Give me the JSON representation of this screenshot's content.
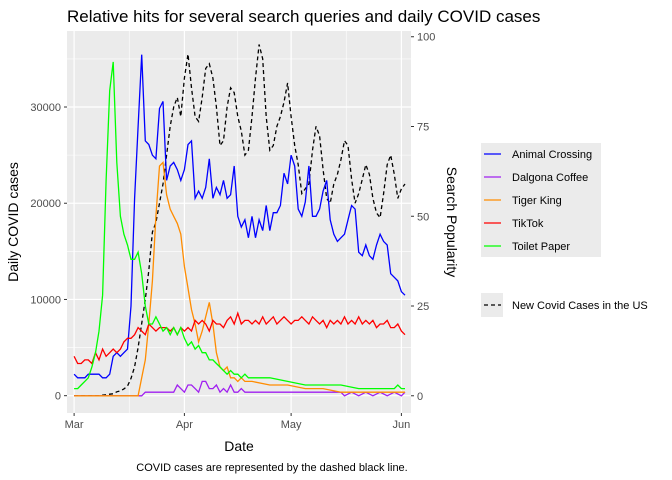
{
  "chart_data": {
    "type": "line",
    "title": "Relative hits for several search queries and daily COVID cases",
    "xlabel": "Date",
    "ylabel": "Daily COVID cases",
    "y2label": "Search Popularity",
    "caption": "COVID cases are represented by the dashed black line.",
    "x_ticks": [
      "Mar",
      "Apr",
      "May",
      "Jun"
    ],
    "x_tick_values": [
      0,
      31,
      61,
      92
    ],
    "y_ticks": [
      "0",
      "10000",
      "20000",
      "30000"
    ],
    "y_tick_values": [
      0,
      10000,
      20000,
      30000
    ],
    "y2_ticks": [
      "0",
      "25",
      "50",
      "75",
      "100"
    ],
    "y2_tick_values": [
      0,
      25,
      50,
      75,
      100
    ],
    "xlim": [
      -2,
      94.7
    ],
    "ylim": [
      -1800,
      37900
    ],
    "y2lim": [
      -4.8,
      101.6
    ],
    "grid": true,
    "legend_position": "right",
    "legend": {
      "search_entries": [
        "Animal Crossing",
        "Dalgona Coffee",
        "Tiger King",
        "TikTok",
        "Toilet Paper"
      ],
      "covid_entry": "New Covid Cases in the US"
    },
    "colors": {
      "panel": "#ebebeb",
      "grid": "#ffffff",
      "animal_crossing": "#0000ff",
      "dalgona_coffee": "#a020f0",
      "tiger_king": "#ff8c00",
      "tiktok": "#ff0000",
      "toilet_paper": "#00ff00",
      "covid": "#000000"
    },
    "search_series": [
      {
        "name": "Animal Crossing",
        "color": "#0000ff",
        "x": [
          0,
          1,
          2,
          3,
          4,
          5,
          6,
          7,
          8,
          9,
          10,
          11,
          12,
          13,
          14,
          15,
          16,
          17,
          18,
          19,
          20,
          21,
          22,
          23,
          24,
          25,
          26,
          27,
          28,
          29,
          30,
          31,
          32,
          33,
          34,
          35,
          36,
          37,
          38,
          39,
          40,
          41,
          42,
          43,
          44,
          45,
          46,
          47,
          48,
          49,
          50,
          51,
          52,
          53,
          54,
          55,
          56,
          57,
          58,
          59,
          60,
          61,
          62,
          63,
          64,
          65,
          66,
          67,
          68,
          69,
          70,
          71,
          72,
          73,
          74,
          75,
          76,
          77,
          78,
          79,
          80,
          81,
          82,
          83,
          84,
          85,
          86,
          87,
          88,
          89,
          90,
          91,
          92,
          93
        ],
        "y": [
          6,
          5,
          5,
          5,
          6,
          6,
          6,
          6,
          5,
          5,
          6,
          11,
          12,
          11,
          12,
          13,
          25,
          55,
          75,
          95,
          71,
          70,
          67,
          66,
          80,
          82,
          60,
          64,
          65,
          63,
          60,
          63,
          70,
          71,
          55,
          57,
          55,
          58,
          66,
          55,
          58,
          56,
          60,
          55,
          56,
          64,
          50,
          47,
          49,
          44,
          50,
          44,
          49,
          46,
          53,
          46,
          51,
          51,
          53,
          62,
          59,
          67,
          64,
          52,
          50,
          54,
          64,
          50,
          50,
          52,
          57,
          60,
          49,
          45,
          43,
          44,
          45,
          49,
          53,
          52,
          40,
          39,
          42,
          39,
          38,
          42,
          45,
          43,
          42,
          34,
          33,
          32,
          29,
          28
        ]
      },
      {
        "name": "Dalgona Coffee",
        "color": "#a020f0",
        "x": [
          0,
          5,
          10,
          15,
          19,
          20,
          24,
          28,
          29,
          30,
          31,
          32,
          33,
          34,
          35,
          36,
          37,
          38,
          39,
          40,
          41,
          42,
          43,
          44,
          45,
          46,
          47,
          48,
          49,
          50,
          55,
          60,
          65,
          70,
          75,
          76,
          78,
          80,
          82,
          84,
          86,
          88,
          90,
          92,
          93
        ],
        "y": [
          0,
          0,
          0,
          0,
          0,
          1,
          1,
          1,
          3,
          2,
          1,
          3,
          3,
          2,
          1,
          4,
          4,
          2,
          2,
          3,
          1,
          2,
          1,
          3,
          1,
          1,
          2,
          1,
          1,
          1,
          1,
          1,
          1,
          1,
          1,
          0,
          1,
          0,
          1,
          0,
          1,
          0,
          1,
          0,
          1
        ]
      },
      {
        "name": "Tiger King",
        "color": "#ff8c00",
        "x": [
          0,
          5,
          10,
          15,
          18,
          19,
          20,
          21,
          22,
          23,
          24,
          25,
          26,
          27,
          28,
          29,
          30,
          31,
          32,
          33,
          34,
          35,
          36,
          37,
          38,
          39,
          40,
          41,
          42,
          43,
          44,
          45,
          46,
          47,
          48,
          50,
          55,
          60,
          65,
          70,
          75,
          80,
          85,
          90,
          93
        ],
        "y": [
          0,
          0,
          0,
          0,
          0,
          5,
          10,
          20,
          32,
          50,
          64,
          65,
          56,
          52,
          50,
          48,
          45,
          36,
          30,
          24,
          20,
          15,
          18,
          22,
          26,
          20,
          12,
          8,
          7,
          8,
          5,
          5,
          4,
          5,
          4,
          4,
          3,
          3,
          2,
          2,
          1,
          1,
          1,
          1,
          1
        ]
      },
      {
        "name": "TikTok",
        "color": "#ff0000",
        "x": [
          0,
          1,
          2,
          3,
          4,
          5,
          6,
          7,
          8,
          9,
          10,
          11,
          12,
          13,
          14,
          15,
          16,
          17,
          18,
          19,
          20,
          21,
          22,
          23,
          24,
          25,
          26,
          27,
          28,
          29,
          30,
          31,
          32,
          33,
          34,
          35,
          36,
          37,
          38,
          39,
          40,
          41,
          42,
          43,
          44,
          45,
          46,
          47,
          48,
          49,
          50,
          51,
          52,
          53,
          54,
          55,
          56,
          57,
          58,
          59,
          60,
          61,
          62,
          63,
          64,
          65,
          66,
          67,
          68,
          69,
          70,
          71,
          72,
          73,
          74,
          75,
          76,
          77,
          78,
          79,
          80,
          81,
          82,
          83,
          84,
          85,
          86,
          87,
          88,
          89,
          90,
          91,
          92,
          93
        ],
        "y": [
          11,
          9,
          9,
          10,
          10,
          9,
          12,
          10,
          13,
          11,
          12,
          13,
          12,
          13,
          15,
          16,
          16,
          17,
          19,
          18,
          17,
          20,
          19,
          18,
          19,
          19,
          19,
          18,
          19,
          17,
          19,
          18,
          19,
          18,
          21,
          20,
          21,
          20,
          18,
          21,
          20,
          20,
          19,
          21,
          22,
          20,
          23,
          20,
          21,
          21,
          20,
          21,
          20,
          22,
          20,
          21,
          22,
          20,
          21,
          22,
          21,
          20,
          21,
          21,
          22,
          21,
          20,
          22,
          21,
          20,
          21,
          19,
          21,
          20,
          21,
          20,
          22,
          20,
          21,
          20,
          22,
          20,
          21,
          20,
          21,
          19,
          20,
          20,
          21,
          19,
          19,
          20,
          18,
          17
        ]
      },
      {
        "name": "Toilet Paper",
        "color": "#00ff00",
        "x": [
          0,
          1,
          2,
          3,
          4,
          5,
          6,
          7,
          8,
          9,
          10,
          11,
          12,
          13,
          14,
          15,
          16,
          17,
          18,
          19,
          20,
          21,
          22,
          23,
          24,
          25,
          26,
          27,
          28,
          29,
          30,
          31,
          32,
          33,
          34,
          35,
          36,
          37,
          38,
          39,
          40,
          41,
          42,
          43,
          44,
          45,
          46,
          47,
          48,
          49,
          50,
          55,
          60,
          65,
          70,
          75,
          80,
          85,
          90,
          91,
          92,
          93
        ],
        "y": [
          2,
          2,
          3,
          4,
          5,
          8,
          12,
          18,
          28,
          60,
          85,
          93,
          65,
          50,
          45,
          42,
          38,
          38,
          40,
          34,
          25,
          20,
          20,
          22,
          20,
          18,
          19,
          17,
          19,
          17,
          19,
          16,
          14,
          15,
          13,
          14,
          12,
          12,
          10,
          10,
          9,
          8,
          7,
          6,
          7,
          6,
          6,
          5,
          6,
          5,
          5,
          5,
          4,
          3,
          3,
          3,
          2,
          2,
          2,
          3,
          2,
          2
        ]
      }
    ],
    "covid_series": {
      "name": "New Covid Cases in the US",
      "color": "#000000",
      "x": [
        0,
        1,
        2,
        3,
        4,
        5,
        6,
        7,
        8,
        9,
        10,
        11,
        12,
        13,
        14,
        15,
        16,
        17,
        18,
        19,
        20,
        21,
        22,
        23,
        24,
        25,
        26,
        27,
        28,
        29,
        30,
        31,
        32,
        33,
        34,
        35,
        36,
        37,
        38,
        39,
        40,
        41,
        42,
        43,
        44,
        45,
        46,
        47,
        48,
        49,
        50,
        51,
        52,
        53,
        54,
        55,
        56,
        57,
        58,
        59,
        60,
        61,
        62,
        63,
        64,
        65,
        66,
        67,
        68,
        69,
        70,
        71,
        72,
        73,
        74,
        75,
        76,
        77,
        78,
        79,
        80,
        81,
        82,
        83,
        84,
        85,
        86,
        87,
        88,
        89,
        90,
        91,
        92,
        93
      ],
      "y": [
        0,
        0,
        0,
        0,
        0,
        0,
        0,
        0,
        50,
        100,
        150,
        200,
        400,
        500,
        700,
        1000,
        1800,
        3000,
        5000,
        7500,
        10000,
        13000,
        17000,
        18000,
        20000,
        22000,
        25000,
        28000,
        30000,
        31000,
        29000,
        33000,
        35500,
        32000,
        29000,
        28500,
        31000,
        34000,
        34500,
        33000,
        30000,
        26000,
        26500,
        30000,
        32000,
        31500,
        29000,
        27500,
        25000,
        25500,
        29000,
        33000,
        36500,
        35000,
        29000,
        25500,
        26000,
        28000,
        29000,
        30500,
        32500,
        29000,
        26000,
        24000,
        21000,
        21500,
        22000,
        25500,
        28000,
        27000,
        23500,
        20500,
        20000,
        22000,
        23000,
        24500,
        26500,
        26000,
        22500,
        20000,
        21000,
        22500,
        24000,
        23000,
        20500,
        19000,
        18500,
        21000,
        24000,
        25000,
        23000,
        20500,
        21500,
        22000
      ]
    }
  }
}
